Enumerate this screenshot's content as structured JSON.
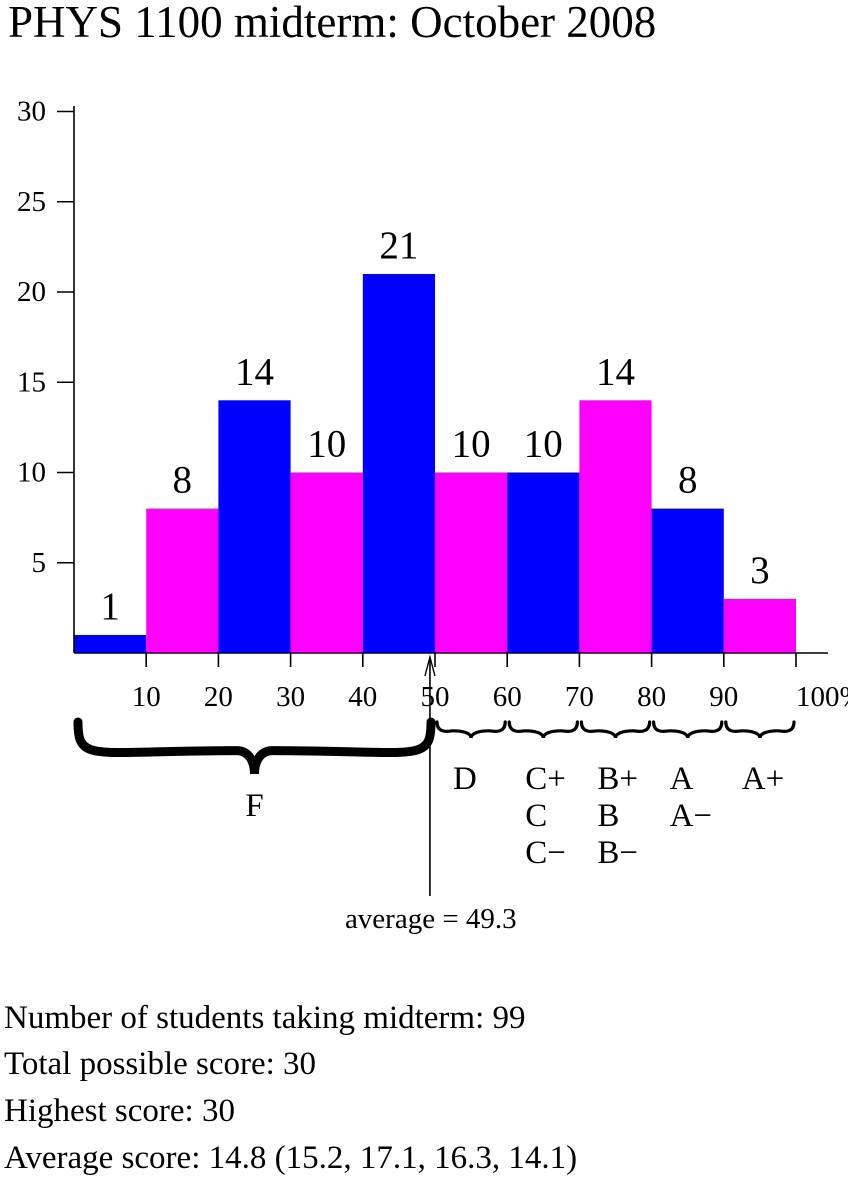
{
  "title": "PHYS 1100 midterm: October 2008",
  "chart_data": {
    "type": "bar",
    "title": "PHYS 1100 midterm: October 2008",
    "bins": [
      "0-10",
      "10-20",
      "20-30",
      "30-40",
      "40-50",
      "50-60",
      "60-70",
      "70-80",
      "80-90",
      "90-100"
    ],
    "values": [
      1,
      8,
      14,
      10,
      21,
      10,
      10,
      14,
      8,
      3
    ],
    "bar_colors": [
      "#0000ff",
      "#ff00ff",
      "#0000ff",
      "#ff00ff",
      "#0000ff",
      "#ff00ff",
      "#0000ff",
      "#ff00ff",
      "#0000ff",
      "#ff00ff"
    ],
    "x_ticks": [
      "10",
      "20",
      "30",
      "40",
      "50",
      "60",
      "70",
      "80",
      "90",
      "100%"
    ],
    "y_ticks": [
      "5",
      "10",
      "15",
      "20",
      "25",
      "30"
    ],
    "xlim": [
      0,
      100
    ],
    "ylim": [
      0,
      30
    ],
    "grid": false,
    "average": {
      "value": 49.3,
      "label": "average = 49.3"
    },
    "grade_groups": [
      {
        "range": [
          0,
          50
        ],
        "grades": [
          "F"
        ]
      },
      {
        "range": [
          50,
          60
        ],
        "grades": [
          "D"
        ]
      },
      {
        "range": [
          60,
          70
        ],
        "grades": [
          "C+",
          "C",
          "C−"
        ]
      },
      {
        "range": [
          70,
          80
        ],
        "grades": [
          "B+",
          "B",
          "B−"
        ]
      },
      {
        "range": [
          80,
          90
        ],
        "grades": [
          "A",
          "A−"
        ]
      },
      {
        "range": [
          90,
          100
        ],
        "grades": [
          "A+"
        ]
      }
    ]
  },
  "stats": {
    "students": "Number of students taking midterm: 99",
    "total": "Total possible score: 30",
    "highest": "Highest score: 30",
    "average": "Average score: 14.8 (15.2, 17.1, 16.3, 14.1)"
  }
}
